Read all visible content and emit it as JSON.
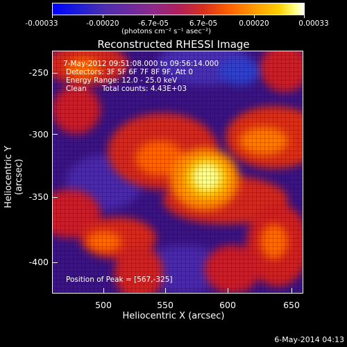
{
  "colorbar": {
    "tick_labels": [
      "-0.00033",
      "-0.00020",
      "-6.7e-05",
      "6.7e-05",
      "0.00020",
      "0.00033"
    ],
    "unit": "(photons cm⁻² s⁻¹ asec⁻²)"
  },
  "title": "Reconstructed RHESSI Image",
  "annotation": {
    "time": "7-May-2012 09:51:08.000 to 09:56:14.000",
    "detectors": "Detectors: 3F 5F 6F 7F 8F 9F, Att 0",
    "energy": "Energy Range: 12.0 - 25.0 keV",
    "clean_label": "Clean",
    "counts": "Total counts: 4.43E+03",
    "peak": "Position of Peak = [567,-325]"
  },
  "axes": {
    "x_label": "Heliocentric X (arcsec)",
    "y_label": "Heliocentric Y (arcsec)",
    "x_ticks": [
      "500",
      "550",
      "600",
      "650"
    ],
    "y_ticks": [
      "-250",
      "-300",
      "-350",
      "-400"
    ]
  },
  "footer_date": "6-May-2014 04:13"
}
